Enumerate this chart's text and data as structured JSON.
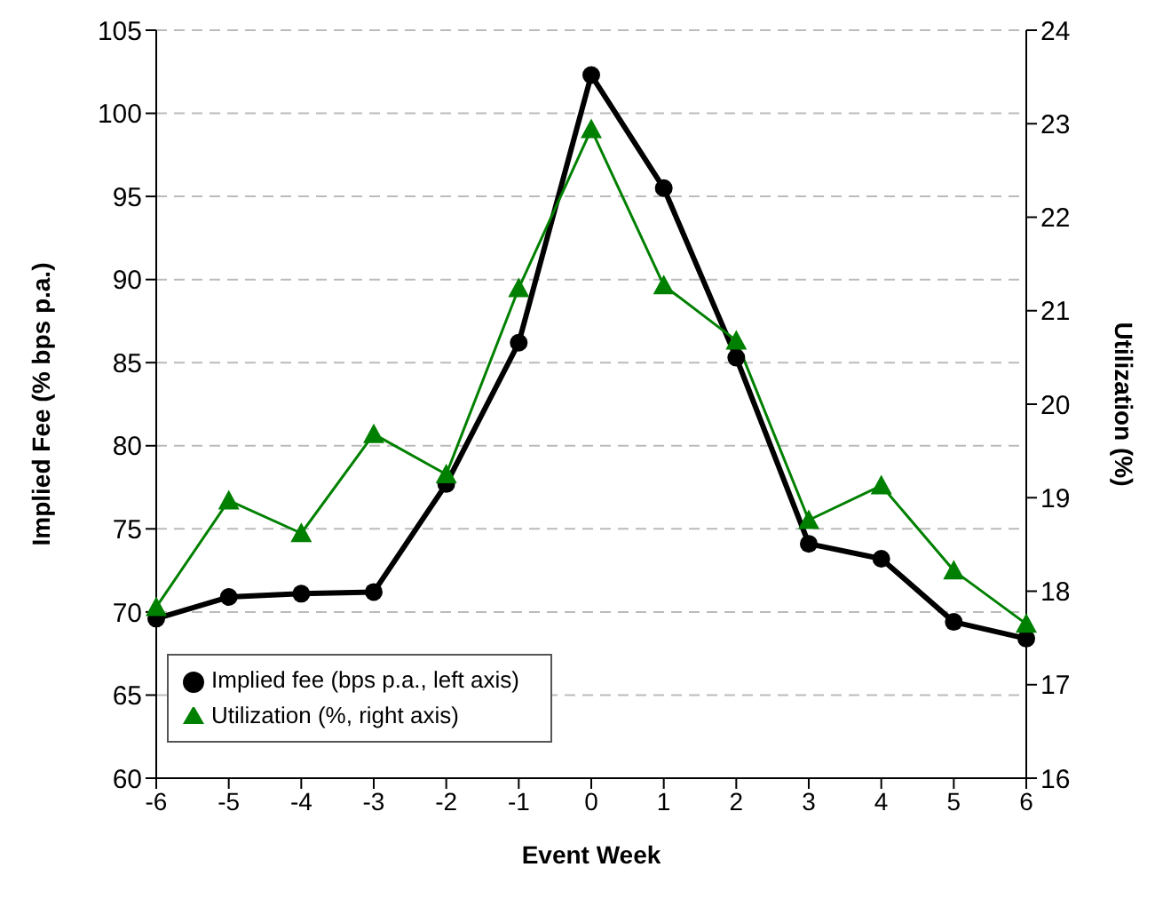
{
  "chart_data": {
    "type": "line",
    "xlabel": "Event Week",
    "ylabel": "Implied Fee (% bps p.a.)",
    "y2label": "Utilization (%)",
    "categories": [
      "-6",
      "-5",
      "-4",
      "-3",
      "-2",
      "-1",
      "0",
      "1",
      "2",
      "3",
      "4",
      "5",
      "6"
    ],
    "series": [
      {
        "name": "Implied fee (bps p.a., left axis)",
        "color": "#000000",
        "marker": "circle",
        "values": [
          69.6,
          70.9,
          71.1,
          71.2,
          77.7,
          86.2,
          102.3,
          95.5,
          85.3,
          74.1,
          73.2,
          69.4,
          68.4
        ]
      },
      {
        "name": "Utilization (%, right axis)",
        "color": "#008000",
        "marker": "triangle",
        "axis": "y2",
        "values": [
          17.83,
          18.97,
          18.62,
          19.68,
          19.25,
          21.24,
          22.94,
          21.27,
          20.68,
          18.76,
          19.13,
          18.22,
          17.65
        ]
      }
    ],
    "ylim": [
      60,
      105
    ],
    "yticks": [
      60,
      65,
      70,
      75,
      80,
      85,
      90,
      95,
      100,
      105
    ],
    "y2lim": [
      16,
      24
    ],
    "y2ticks": [
      16,
      17,
      18,
      19,
      20,
      21,
      22,
      23,
      24
    ],
    "grid": "y",
    "legend": "bottom left"
  }
}
